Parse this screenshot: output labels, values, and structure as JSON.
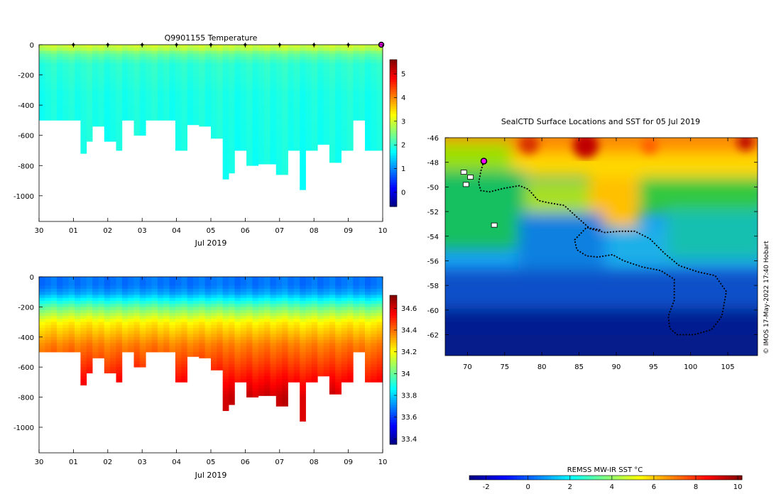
{
  "chart_data": [
    {
      "type": "heatmap",
      "name": "temperature-section",
      "title": "Q9901155  Temperature",
      "xlabel": "Jul 2019",
      "x_tick_labels": [
        "30",
        "01",
        "02",
        "03",
        "04",
        "05",
        "06",
        "07",
        "08",
        "09",
        "10"
      ],
      "x_range_days": [
        0,
        10
      ],
      "y_ticks": [
        0,
        -200,
        -400,
        -600,
        -800,
        -1000
      ],
      "ylim": [
        -1170,
        0
      ],
      "profile_max_depths": [
        500,
        500,
        500,
        500,
        500,
        500,
        500,
        720,
        640,
        540,
        540,
        640,
        640,
        700,
        500,
        500,
        600,
        600,
        500,
        500,
        500,
        500,
        500,
        700,
        700,
        530,
        530,
        540,
        540,
        620,
        620,
        890,
        850,
        700,
        700,
        800,
        800,
        790,
        790,
        790,
        860,
        860,
        700,
        700,
        960,
        700,
        700,
        660,
        660,
        780,
        780,
        700,
        700,
        500,
        500,
        700,
        700,
        700
      ],
      "surface_profile_days": [
        1,
        2,
        3,
        4,
        5,
        6,
        7,
        8,
        9
      ],
      "current_position_day": 10,
      "colorbar": {
        "ticks": [
          0,
          1,
          2,
          3,
          4,
          5
        ],
        "range": [
          -0.6,
          5.6
        ],
        "palette": "jet"
      }
    },
    {
      "type": "heatmap",
      "name": "salinity-section",
      "xlabel": "Jul 2019",
      "x_tick_labels": [
        "30",
        "01",
        "02",
        "03",
        "04",
        "05",
        "06",
        "07",
        "08",
        "09",
        "10"
      ],
      "y_ticks": [
        0,
        -200,
        -400,
        -600,
        -800,
        -1000
      ],
      "ylim": [
        -1170,
        0
      ],
      "colorbar": {
        "ticks": [
          33.4,
          33.6,
          33.8,
          34,
          34.2,
          34.4,
          34.6
        ],
        "tick_labels": [
          "33.4",
          "33.6",
          "33.8",
          "34",
          "34.2",
          "34.4",
          "34.6"
        ],
        "range": [
          33.35,
          34.72
        ],
        "palette": "jet"
      }
    },
    {
      "type": "scatter",
      "name": "surface-map",
      "title": "SealCTD Surface Locations and SST for 05 Jul 2019",
      "xlim": [
        67,
        109
      ],
      "ylim": [
        -63.7,
        -46
      ],
      "x_ticks": [
        70,
        75,
        80,
        85,
        90,
        95,
        100,
        105
      ],
      "y_ticks": [
        -46,
        -48,
        -50,
        -52,
        -54,
        -56,
        -58,
        -60,
        -62
      ],
      "y_tick_labels": [
        "-46",
        "-48",
        "-50",
        "-52",
        "-54",
        "-56",
        "-58",
        "-60",
        "-62"
      ],
      "track": [
        [
          72.2,
          -47.9
        ],
        [
          71.8,
          -48.7
        ],
        [
          71.5,
          -49.7
        ],
        [
          71.8,
          -50.3
        ],
        [
          73,
          -50.4
        ],
        [
          75,
          -50.1
        ],
        [
          77,
          -49.9
        ],
        [
          78.2,
          -50.2
        ],
        [
          79.5,
          -51.1
        ],
        [
          81,
          -51.3
        ],
        [
          83,
          -51.5
        ],
        [
          84.8,
          -52.5
        ],
        [
          86.5,
          -53.4
        ],
        [
          88.5,
          -53.7
        ],
        [
          90.5,
          -53.6
        ],
        [
          92.5,
          -53.6
        ],
        [
          94.5,
          -54.2
        ],
        [
          96.5,
          -55.4
        ],
        [
          98.5,
          -56.4
        ],
        [
          101,
          -56.9
        ],
        [
          103.3,
          -57.2
        ],
        [
          104.8,
          -58.5
        ],
        [
          104.2,
          -60.5
        ],
        [
          102.8,
          -61.6
        ],
        [
          100.5,
          -62
        ],
        [
          98.2,
          -62
        ],
        [
          97.2,
          -61.5
        ],
        [
          97,
          -60.5
        ],
        [
          97.8,
          -59.2
        ],
        [
          97.8,
          -57.5
        ],
        [
          96,
          -56.8
        ],
        [
          93.5,
          -56.5
        ],
        [
          91,
          -56
        ],
        [
          89.5,
          -55.5
        ],
        [
          87.5,
          -55.7
        ],
        [
          86,
          -55.6
        ],
        [
          84.7,
          -55.1
        ],
        [
          84.4,
          -54.3
        ],
        [
          86,
          -53.3
        ],
        [
          88,
          -53.5
        ]
      ],
      "current_position": [
        72.2,
        -47.9
      ],
      "labelled_points": [
        [
          69.5,
          -48.8
        ],
        [
          69.8,
          -49.8
        ],
        [
          70.4,
          -49.2
        ],
        [
          73.6,
          -53.1
        ]
      ],
      "colorbar": {
        "label": "REMSS MW-IR SST °C",
        "ticks": [
          -2,
          0,
          2,
          4,
          6,
          8,
          10
        ],
        "range": [
          -2.8,
          10.2
        ],
        "palette": "jet"
      }
    }
  ],
  "credit": "© IMOS 17-May-2022 17:40 Hobart"
}
